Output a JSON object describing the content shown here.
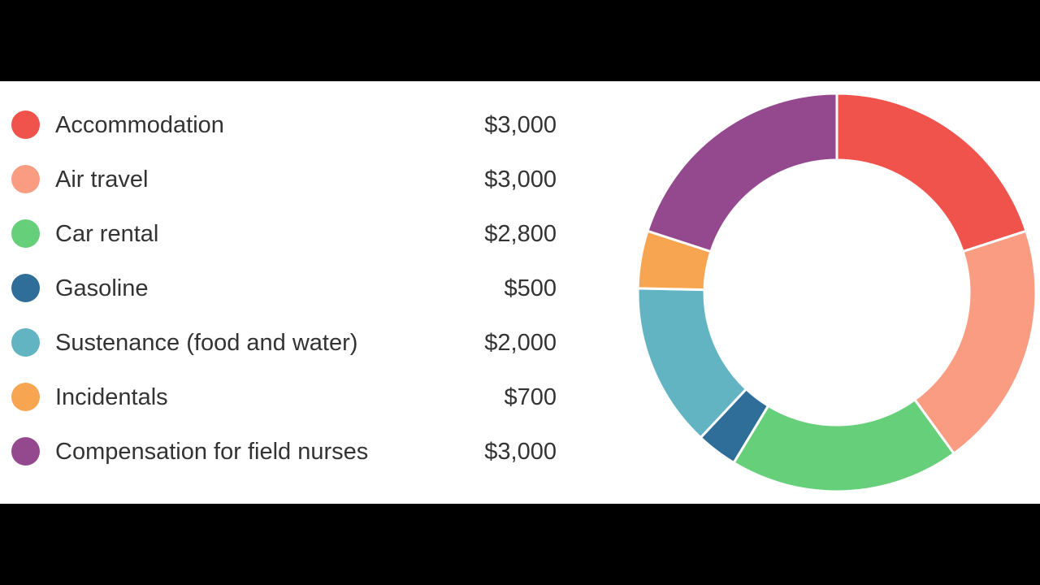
{
  "chart_data": {
    "type": "pie",
    "variant": "donut",
    "legend_position": "left",
    "categories": [
      "Accommodation",
      "Air travel",
      "Car rental",
      "Gasoline",
      "Sustenance (food and water)",
      "Incidentals",
      "Compensation for field nurses"
    ],
    "values": [
      3000,
      3000,
      2800,
      500,
      2000,
      700,
      3000
    ],
    "value_labels": [
      "$3,000",
      "$3,000",
      "$2,800",
      "$500",
      "$2,000",
      "$700",
      "$3,000"
    ],
    "colors": [
      "#f0524c",
      "#f99c82",
      "#65cf7a",
      "#2f6e98",
      "#62b4c2",
      "#f8a552",
      "#94498f"
    ]
  }
}
